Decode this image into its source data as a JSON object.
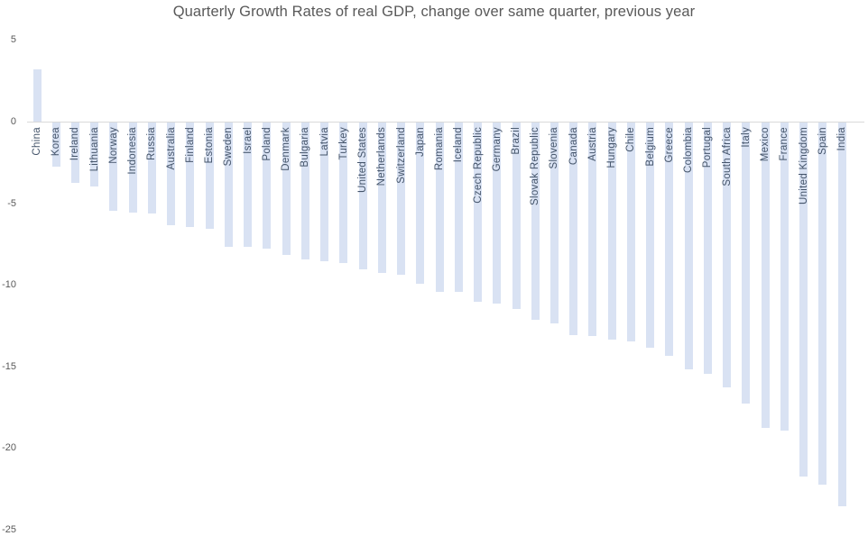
{
  "title": "Quarterly Growth Rates of real GDP, change over same quarter, previous year",
  "chart_data": {
    "type": "bar",
    "title": "Quarterly Growth Rates of real GDP, change over same quarter, previous year",
    "xlabel": "",
    "ylabel": "",
    "ylim": [
      -25,
      5
    ],
    "yticks": [
      5,
      0,
      -5,
      -10,
      -15,
      -20,
      -25
    ],
    "grid": false,
    "legend_position": "none",
    "bar_color": "#d9e2f3",
    "category_label_color": "#44546a",
    "tick_label_color": "#595959",
    "axis_line_color": "#d9d9d9",
    "categories": [
      "China",
      "Korea",
      "Ireland",
      "Lithuania",
      "Norway",
      "Indonesia",
      "Russia",
      "Australia",
      "Finland",
      "Estonia",
      "Sweden",
      "Israel",
      "Poland",
      "Denmark",
      "Bulgaria",
      "Latvia",
      "Turkey",
      "United States",
      "Netherlands",
      "Switzerland",
      "Japan",
      "Romania",
      "Iceland",
      "Czech Republic",
      "Germany",
      "Brazil",
      "Slovak Republic",
      "Slovenia",
      "Canada",
      "Austria",
      "Hungary",
      "Chile",
      "Belgium",
      "Greece",
      "Colombia",
      "Portugal",
      "South Africa",
      "Italy",
      "Mexico",
      "France",
      "United Kingdom",
      "Spain",
      "India"
    ],
    "values": [
      3.2,
      -2.7,
      -3.7,
      -3.9,
      -5.4,
      -5.5,
      -5.6,
      -6.3,
      -6.4,
      -6.5,
      -7.6,
      -7.6,
      -7.7,
      -8.1,
      -8.4,
      -8.5,
      -8.6,
      -9.0,
      -9.2,
      -9.3,
      -9.9,
      -10.4,
      -10.4,
      -11.0,
      -11.1,
      -11.4,
      -12.1,
      -12.3,
      -13.0,
      -13.1,
      -13.3,
      -13.4,
      -13.8,
      -14.3,
      -15.1,
      -15.4,
      -16.2,
      -17.2,
      -18.7,
      -18.9,
      -21.7,
      -22.2,
      -23.5
    ]
  }
}
